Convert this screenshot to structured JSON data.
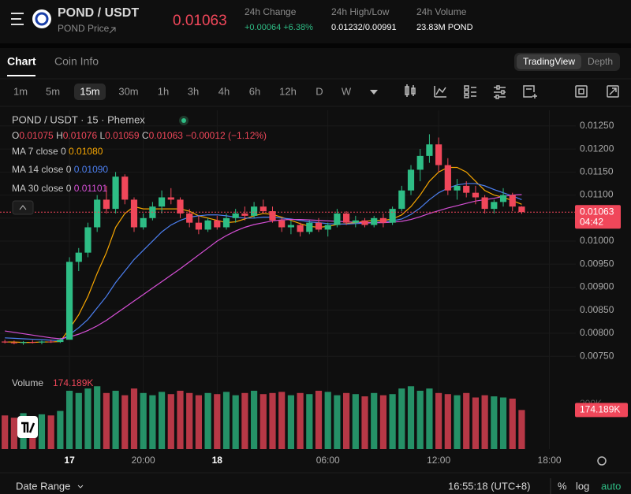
{
  "header": {
    "pair": "POND / USDT",
    "price_link": "POND Price",
    "last_price": "0.01063",
    "stats": [
      {
        "label": "24h Change",
        "value": "+0.00064 +6.38%"
      },
      {
        "label": "24h High/Low",
        "value": "0.01232/0.00991"
      },
      {
        "label": "24h Volume",
        "value": "23.83M POND"
      }
    ]
  },
  "tabs": [
    "Chart",
    "Coin Info"
  ],
  "views": [
    "TradingView",
    "Depth"
  ],
  "intervals": [
    "1m",
    "5m",
    "15m",
    "30m",
    "1h",
    "3h",
    "4h",
    "6h",
    "12h",
    "D",
    "W"
  ],
  "footer": {
    "date_range": "Date Range",
    "clock": "16:55:18 (UTC+8)",
    "percent": "%",
    "log": "log",
    "auto": "auto"
  },
  "chart_data": {
    "type": "candlestick",
    "title": "POND / USDT · 15 · Phemex",
    "ohlc_legend": [
      {
        "label": "O",
        "value": "0.01075"
      },
      {
        "label": "H",
        "value": "0.01076"
      },
      {
        "label": "L",
        "value": "0.01059"
      },
      {
        "label": "C",
        "value": "0.01063"
      }
    ],
    "change": "−0.00012 (−1.12%)",
    "up_color": "#2ebd85",
    "down_color": "#f0475a",
    "x": [
      -3.5,
      -3,
      -2.5,
      -2,
      -1.5,
      -1,
      -0.5,
      0,
      0.5,
      1,
      1.5,
      2,
      2.5,
      3,
      3.5,
      4,
      4.5,
      5,
      5.5,
      6,
      6.5,
      7,
      7.5,
      8,
      8.5,
      9,
      9.5,
      10,
      10.5,
      11,
      11.5,
      12,
      12.5,
      13,
      13.5,
      14,
      14.5,
      15,
      15.5,
      16,
      16.5,
      17,
      17.5,
      18,
      18.5,
      19,
      19.5,
      20,
      20.5,
      21,
      21.5,
      22,
      22.5,
      23,
      23.5,
      24,
      24.5
    ],
    "open": [
      0.00782,
      0.0078,
      0.00779,
      0.00781,
      0.0078,
      0.00782,
      0.00781,
      0.00786,
      0.00955,
      0.00975,
      0.0103,
      0.0109,
      0.0107,
      0.0114,
      0.0109,
      0.0103,
      0.0105,
      0.01075,
      0.01095,
      0.0109,
      0.0106,
      0.0104,
      0.01025,
      0.01045,
      0.0103,
      0.0105,
      0.0106,
      0.01055,
      0.01075,
      0.01065,
      0.01045,
      0.0103,
      0.01035,
      0.0102,
      0.0104,
      0.01025,
      0.01035,
      0.0106,
      0.0104,
      0.01045,
      0.01035,
      0.0105,
      0.0104,
      0.0107,
      0.0111,
      0.01155,
      0.01185,
      0.0121,
      0.01165,
      0.0111,
      0.0112,
      0.01105,
      0.01095,
      0.0107,
      0.01085,
      0.011,
      0.01075
    ],
    "high": [
      0.00786,
      0.00784,
      0.00783,
      0.00785,
      0.00784,
      0.00786,
      0.0079,
      0.00965,
      0.00985,
      0.0104,
      0.011,
      0.0112,
      0.0115,
      0.01145,
      0.01095,
      0.0106,
      0.01085,
      0.0111,
      0.01115,
      0.01095,
      0.0107,
      0.01055,
      0.0105,
      0.01055,
      0.0106,
      0.0107,
      0.01075,
      0.01085,
      0.0109,
      0.01075,
      0.0105,
      0.01045,
      0.0104,
      0.01045,
      0.0105,
      0.0104,
      0.0107,
      0.01065,
      0.01055,
      0.0105,
      0.01055,
      0.0106,
      0.01075,
      0.0112,
      0.01165,
      0.012,
      0.01232,
      0.01225,
      0.0118,
      0.01135,
      0.0113,
      0.0112,
      0.011,
      0.0109,
      0.01115,
      0.01105,
      0.01076
    ],
    "low": [
      0.00778,
      0.00776,
      0.00775,
      0.00778,
      0.00776,
      0.00779,
      0.00779,
      0.00786,
      0.00935,
      0.00965,
      0.0102,
      0.0106,
      0.0106,
      0.0108,
      0.0102,
      0.01025,
      0.01045,
      0.0106,
      0.0108,
      0.0105,
      0.0103,
      0.01015,
      0.0102,
      0.01025,
      0.01025,
      0.0104,
      0.01045,
      0.0105,
      0.0106,
      0.0104,
      0.0102,
      0.01015,
      0.0101,
      0.01015,
      0.0102,
      0.0101,
      0.0103,
      0.01035,
      0.0103,
      0.0103,
      0.0103,
      0.0103,
      0.01035,
      0.01065,
      0.011,
      0.0113,
      0.0117,
      0.0115,
      0.011,
      0.0109,
      0.01095,
      0.0108,
      0.0106,
      0.0106,
      0.01075,
      0.01065,
      0.01059
    ],
    "close": [
      0.0078,
      0.00779,
      0.00781,
      0.0078,
      0.00782,
      0.00781,
      0.00786,
      0.00955,
      0.00975,
      0.0103,
      0.0109,
      0.0107,
      0.0114,
      0.0109,
      0.0103,
      0.0105,
      0.01075,
      0.01095,
      0.0109,
      0.0106,
      0.0104,
      0.01025,
      0.01045,
      0.0103,
      0.0105,
      0.0106,
      0.01055,
      0.01075,
      0.01065,
      0.01045,
      0.0103,
      0.01035,
      0.0102,
      0.0104,
      0.01025,
      0.01035,
      0.0106,
      0.0104,
      0.01045,
      0.01035,
      0.0105,
      0.0104,
      0.0107,
      0.0111,
      0.01155,
      0.01185,
      0.0121,
      0.01165,
      0.0111,
      0.0112,
      0.01105,
      0.01095,
      0.0107,
      0.01085,
      0.011,
      0.01075,
      0.01063
    ],
    "countdown": "04:42",
    "ma": [
      {
        "name": "MA 7 close 0",
        "color": "#f7a600",
        "last_label": "0.01080",
        "values": [
          0.00781,
          0.00781,
          0.0078,
          0.0078,
          0.00781,
          0.00781,
          0.00782,
          0.0081,
          0.0084,
          0.0088,
          0.0093,
          0.00975,
          0.0103,
          0.0106,
          0.01075,
          0.0107,
          0.0107,
          0.0107,
          0.0107,
          0.0107,
          0.01065,
          0.01055,
          0.0105,
          0.01045,
          0.0104,
          0.01042,
          0.01048,
          0.01055,
          0.0106,
          0.01058,
          0.01052,
          0.01045,
          0.01038,
          0.01032,
          0.0103,
          0.01032,
          0.01036,
          0.01038,
          0.0104,
          0.01043,
          0.01045,
          0.01045,
          0.01048,
          0.01057,
          0.01075,
          0.011,
          0.0113,
          0.0115,
          0.0116,
          0.0116,
          0.0115,
          0.0113,
          0.0111,
          0.011,
          0.01095,
          0.01088,
          0.0108
        ]
      },
      {
        "name": "MA 14 close 0",
        "color": "#4c7ff0",
        "last_label": "0.01090",
        "values": [
          0.0079,
          0.00789,
          0.00788,
          0.00787,
          0.00786,
          0.00785,
          0.00784,
          0.00797,
          0.00812,
          0.0083,
          0.00855,
          0.0088,
          0.0091,
          0.00935,
          0.0096,
          0.0098,
          0.01,
          0.0102,
          0.01035,
          0.01045,
          0.01052,
          0.01055,
          0.01057,
          0.01057,
          0.01055,
          0.01052,
          0.0105,
          0.0105,
          0.01052,
          0.01052,
          0.0105,
          0.01048,
          0.01045,
          0.01042,
          0.0104,
          0.01038,
          0.01037,
          0.01037,
          0.01038,
          0.01039,
          0.0104,
          0.01042,
          0.01044,
          0.01048,
          0.01058,
          0.01072,
          0.0109,
          0.01105,
          0.01115,
          0.01122,
          0.01125,
          0.01125,
          0.0112,
          0.01112,
          0.01105,
          0.01098,
          0.0109
        ]
      },
      {
        "name": "MA 30 close 0",
        "color": "#d64fd6",
        "last_label": "0.01101",
        "values": [
          0.00805,
          0.00802,
          0.00799,
          0.00796,
          0.00793,
          0.0079,
          0.00788,
          0.00792,
          0.00798,
          0.00806,
          0.00816,
          0.00828,
          0.00842,
          0.00856,
          0.0087,
          0.00884,
          0.00898,
          0.00912,
          0.00926,
          0.0094,
          0.00955,
          0.0097,
          0.00985,
          0.01,
          0.01012,
          0.01022,
          0.0103,
          0.01036,
          0.0104,
          0.01044,
          0.01046,
          0.01047,
          0.01047,
          0.01046,
          0.01045,
          0.01044,
          0.01043,
          0.01042,
          0.01041,
          0.0104,
          0.0104,
          0.0104,
          0.01041,
          0.01043,
          0.01047,
          0.01053,
          0.0106,
          0.01066,
          0.01072,
          0.01077,
          0.01082,
          0.01087,
          0.0109,
          0.01093,
          0.01097,
          0.011,
          0.01101
        ]
      }
    ],
    "volume": {
      "name": "Volume",
      "last_label": "174.189K",
      "ylim": [
        0,
        316000
      ],
      "yticks": [
        {
          "value": 200000,
          "label": "200K"
        }
      ],
      "values": [
        150000,
        140000,
        160000,
        145000,
        155000,
        150000,
        170000,
        260000,
        250000,
        270000,
        280000,
        250000,
        260000,
        240000,
        270000,
        250000,
        240000,
        255000,
        245000,
        260000,
        250000,
        240000,
        250000,
        245000,
        255000,
        240000,
        250000,
        260000,
        245000,
        250000,
        255000,
        240000,
        250000,
        245000,
        260000,
        255000,
        240000,
        250000,
        245000,
        235000,
        250000,
        240000,
        245000,
        270000,
        280000,
        260000,
        270000,
        250000,
        245000,
        240000,
        250000,
        230000,
        240000,
        235000,
        230000,
        225000,
        174189
      ]
    },
    "xlim": [
      -3.55,
      27.43
    ],
    "xticks": [
      {
        "value": 0,
        "label": "17"
      },
      {
        "value": 4,
        "label": "20:00"
      },
      {
        "value": 8,
        "label": "18"
      },
      {
        "value": 14,
        "label": "06:00"
      },
      {
        "value": 20,
        "label": "12:00"
      },
      {
        "value": 26,
        "label": "18:00"
      }
    ],
    "ylim": [
      0.00711,
      0.01284
    ],
    "yticks": [
      {
        "value": 0.0075,
        "label": "0.00750"
      },
      {
        "value": 0.008,
        "label": "0.00800"
      },
      {
        "value": 0.0085,
        "label": "0.00850"
      },
      {
        "value": 0.009,
        "label": "0.00900"
      },
      {
        "value": 0.0095,
        "label": "0.00950"
      },
      {
        "value": 0.01,
        "label": "0.01000"
      },
      {
        "value": 0.0105,
        "label": "0.01050"
      },
      {
        "value": 0.011,
        "label": "0.01100"
      },
      {
        "value": 0.0115,
        "label": "0.01150"
      },
      {
        "value": 0.012,
        "label": "0.01200"
      },
      {
        "value": 0.0125,
        "label": "0.01250"
      }
    ],
    "grid": true
  }
}
